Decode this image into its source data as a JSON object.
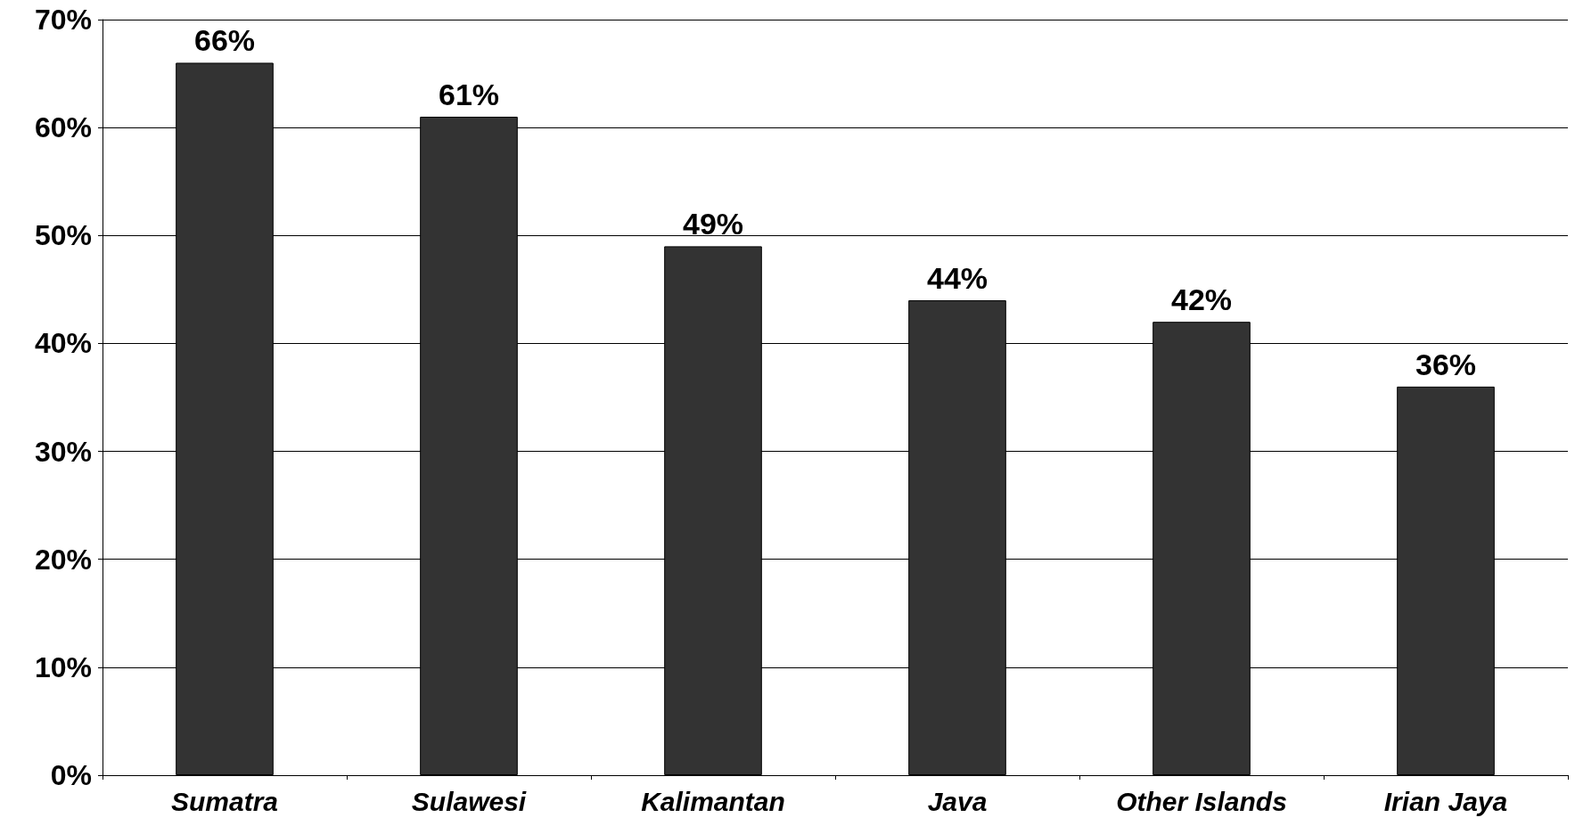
{
  "chart_data": {
    "type": "bar",
    "categories": [
      "Sumatra",
      "Sulawesi",
      "Kalimantan",
      "Java",
      "Other Islands",
      "Irian Jaya"
    ],
    "values": [
      66,
      61,
      49,
      44,
      42,
      36
    ],
    "value_labels": [
      "66%",
      "61%",
      "49%",
      "44%",
      "42%",
      "36%"
    ],
    "color": "#333333",
    "ylim": [
      0,
      70
    ],
    "yticks": [
      {
        "value": 0,
        "label": "0%"
      },
      {
        "value": 10,
        "label": "10%"
      },
      {
        "value": 20,
        "label": "20%"
      },
      {
        "value": 30,
        "label": "30%"
      },
      {
        "value": 40,
        "label": "40%"
      },
      {
        "value": 50,
        "label": "50%"
      },
      {
        "value": 60,
        "label": "60%"
      },
      {
        "value": 70,
        "label": "70%"
      }
    ],
    "grid": true
  }
}
